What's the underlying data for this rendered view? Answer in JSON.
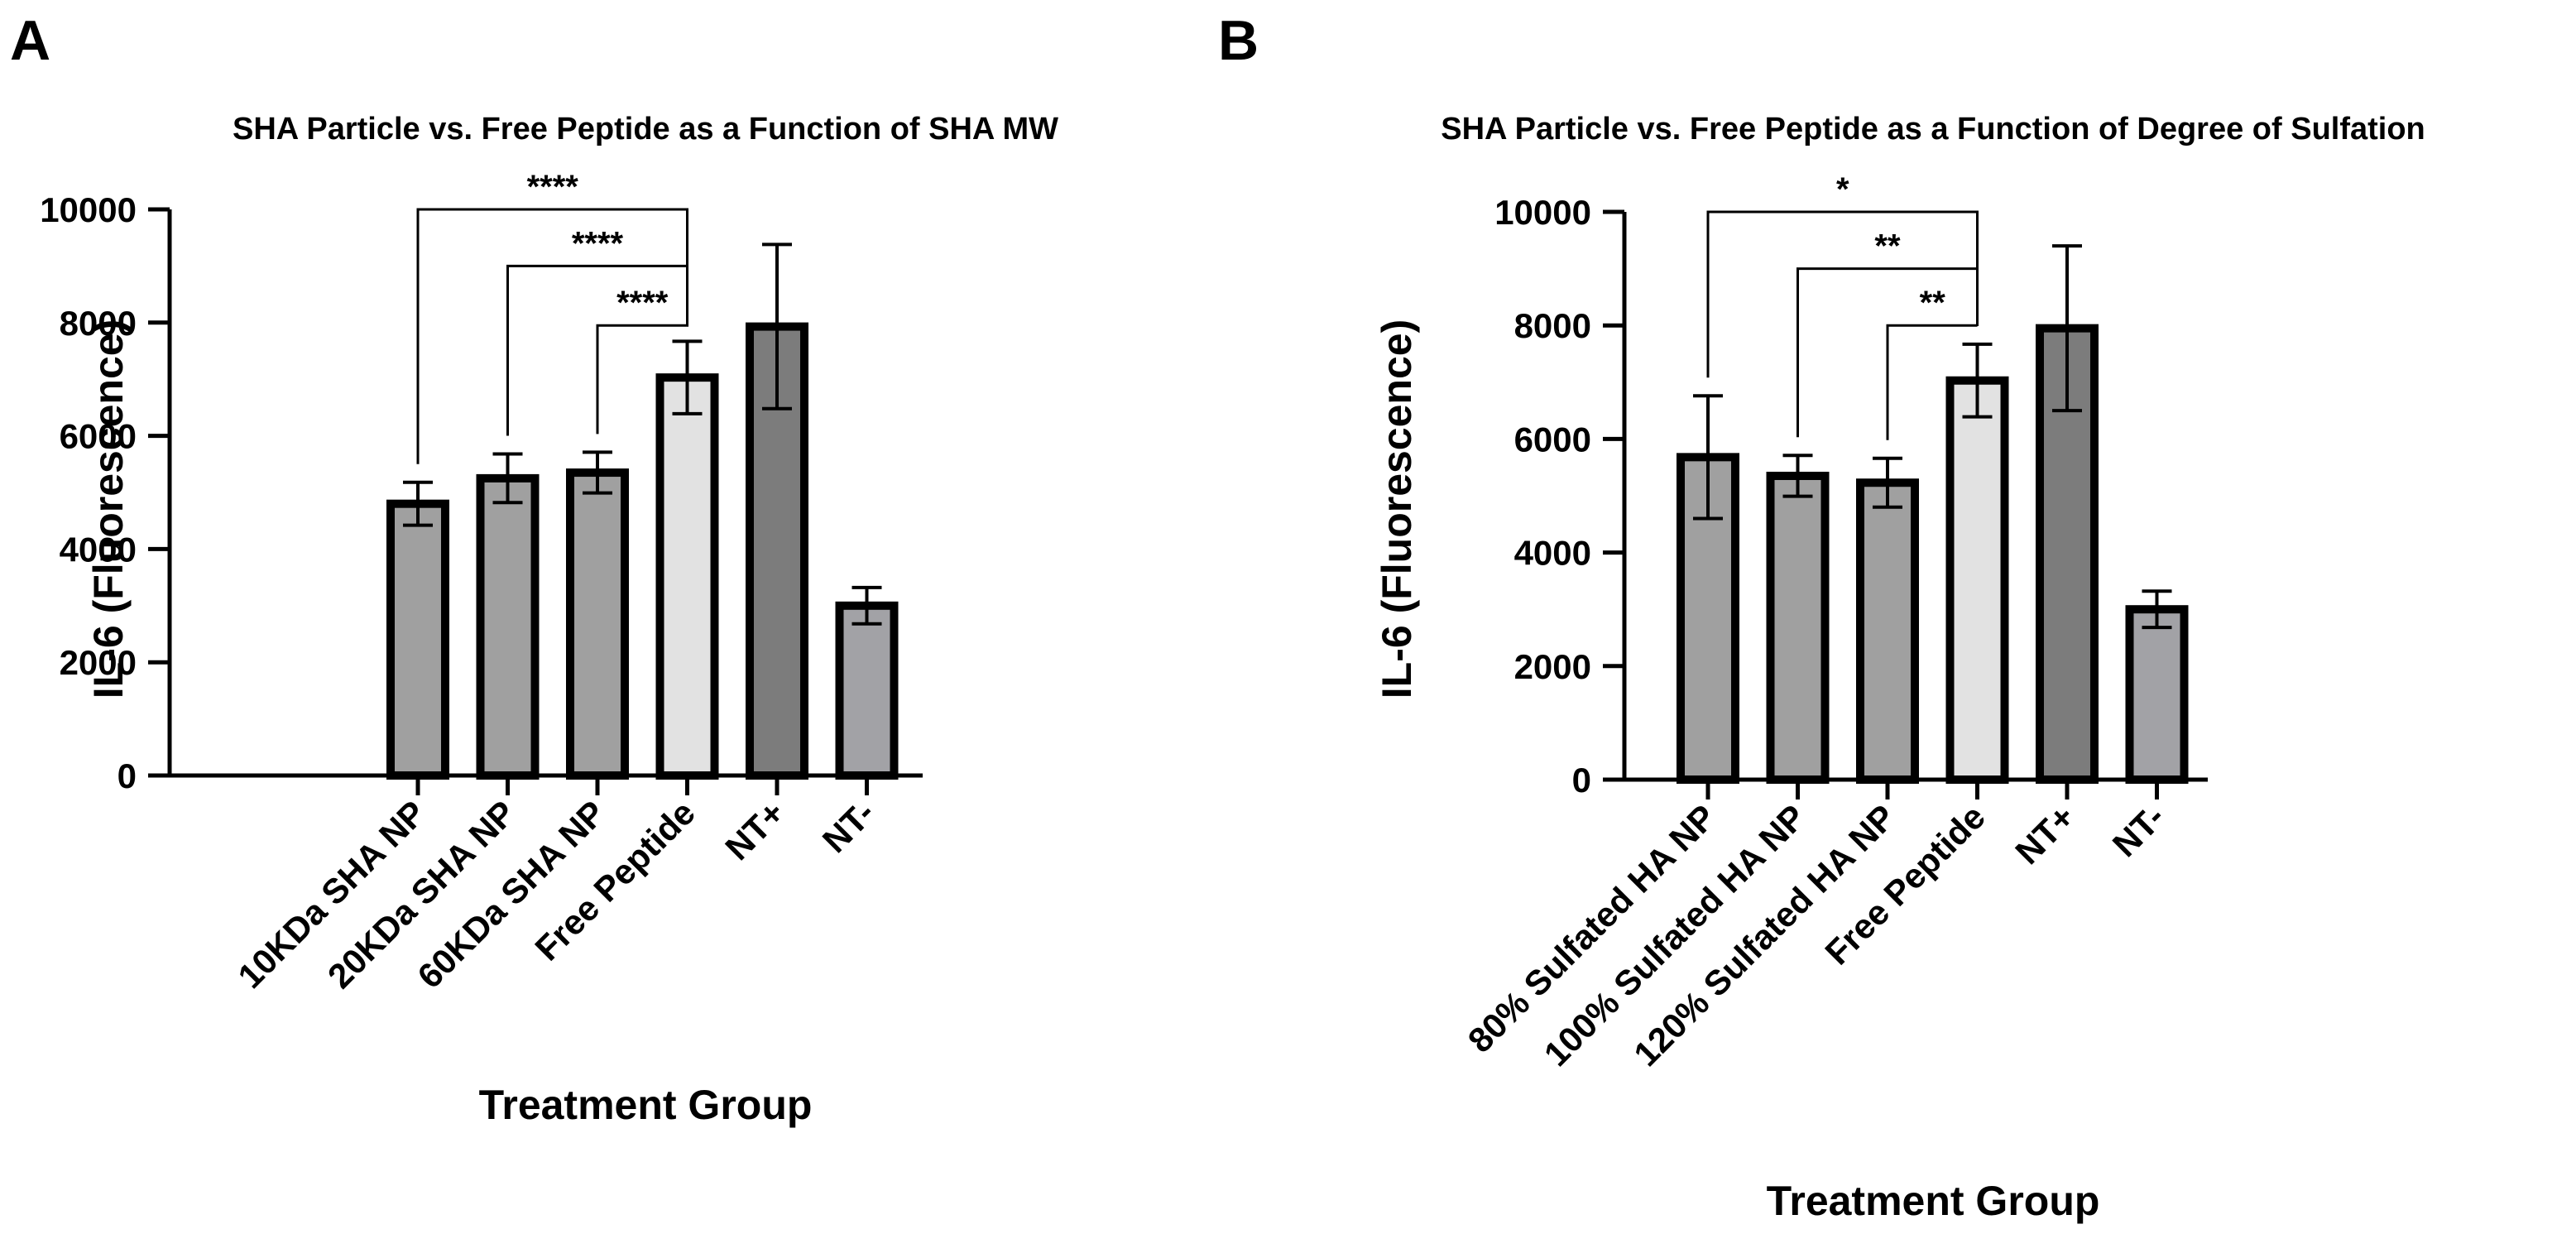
{
  "chart_data": [
    {
      "panel": "A",
      "type": "bar",
      "title": "SHA  Particle vs.  Free Peptide as a  Function of SHA  MW",
      "xlabel": "Treatment  Group",
      "ylabel": "IL-6 (Fluorescence)",
      "ylim": [
        0,
        10000
      ],
      "yticks": [
        0,
        2000,
        4000,
        6000,
        8000,
        10000
      ],
      "categories": [
        "10KDa SHA NP",
        "20KDa SHA NP",
        "60KDa SHA NP",
        "Free Peptide",
        "NT+",
        "NT-"
      ],
      "values": [
        4800,
        5250,
        5350,
        7030,
        7930,
        3000
      ],
      "errors": [
        380,
        430,
        360,
        640,
        1450,
        320
      ],
      "colors": [
        "#a0a0a0",
        "#a0a0a0",
        "#a0a0a0",
        "#e2e2e2",
        "#7c7c7c",
        "#a2a2a6"
      ],
      "significance": [
        {
          "from": 0,
          "to": 3,
          "label": "****",
          "y": 10000
        },
        {
          "from": 1,
          "to": 3,
          "label": "****",
          "y": 9000
        },
        {
          "from": 2,
          "to": 3,
          "label": "****",
          "y": 7950
        }
      ]
    },
    {
      "panel": "B",
      "type": "bar",
      "title": "SHA  Particle vs.  Free Peptide as a  Function of Degree of  Sulfation",
      "xlabel": "Treatment  Group",
      "ylabel": "IL-6 (Fluorescence)",
      "ylim": [
        0,
        10000
      ],
      "yticks": [
        0,
        2000,
        4000,
        6000,
        8000,
        10000
      ],
      "categories": [
        "80% Sulfated HA NP",
        "100% Sulfated HA NP",
        "120% Sulfated HA NP",
        "Free Peptide",
        "NT+",
        "NT-"
      ],
      "values": [
        5680,
        5350,
        5230,
        7030,
        7950,
        3000
      ],
      "errors": [
        1080,
        360,
        430,
        640,
        1450,
        320
      ],
      "colors": [
        "#a0a0a0",
        "#a0a0a0",
        "#a0a0a0",
        "#e2e2e2",
        "#7c7c7c",
        "#a2a2a6"
      ],
      "significance": [
        {
          "from": 0,
          "to": 3,
          "label": "*",
          "y": 10000
        },
        {
          "from": 1,
          "to": 3,
          "label": "**",
          "y": 9000
        },
        {
          "from": 2,
          "to": 3,
          "label": "**",
          "y": 8000
        }
      ]
    }
  ]
}
